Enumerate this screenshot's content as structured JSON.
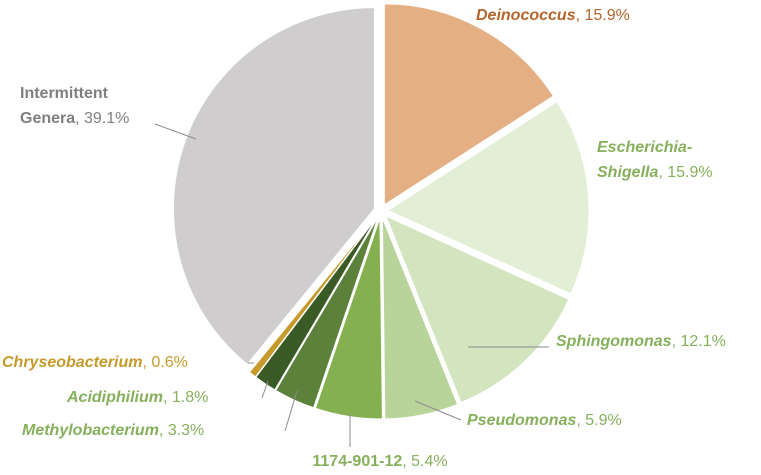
{
  "chart_data": {
    "type": "pie",
    "title": "",
    "slices": [
      {
        "name": "Deinococcus",
        "value": 15.9,
        "label_value": "15.9%",
        "italic": true,
        "color": "#e4b083",
        "label_color": "#b5652c"
      },
      {
        "name": "Escherichia-Shigella",
        "label_lines": [
          "Escherichia-",
          "Shigella"
        ],
        "value": 15.9,
        "label_value": "15.9%",
        "italic": true,
        "color": "#e3eed6",
        "label_color": "#86b05c"
      },
      {
        "name": "Sphingomonas",
        "value": 12.1,
        "label_value": "12.1%",
        "italic": true,
        "color": "#d2e5be",
        "label_color": "#86b05c"
      },
      {
        "name": "Pseudomonas",
        "value": 5.9,
        "label_value": "5.9%",
        "italic": true,
        "color": "#b9d49a",
        "label_color": "#86b05c"
      },
      {
        "name": "1174-901-12",
        "value": 5.4,
        "label_value": "5.4%",
        "italic": false,
        "color": "#85b050",
        "label_color": "#86b05c"
      },
      {
        "name": "Methylobacterium",
        "value": 3.3,
        "label_value": "3.3%",
        "italic": true,
        "color": "#5b813a",
        "label_color": "#86b05c"
      },
      {
        "name": "Acidiphilium",
        "value": 1.8,
        "label_value": "1.8%",
        "italic": true,
        "color": "#3a5a26",
        "label_color": "#86b05c"
      },
      {
        "name": "Chryseobacterium",
        "value": 0.6,
        "label_value": "0.6%",
        "italic": true,
        "color": "#c59a2a",
        "label_color": "#c59a2a"
      },
      {
        "name": "Intermittent Genera",
        "label_lines": [
          "Intermittent",
          "Genera"
        ],
        "value": 39.1,
        "label_value": "39.1%",
        "italic": false,
        "color": "#cfcdcd",
        "label_color": "#7f7f7f"
      }
    ]
  }
}
